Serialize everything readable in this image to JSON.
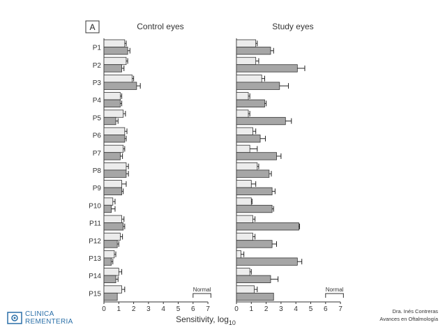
{
  "chart_data": {
    "type": "bar",
    "panel_label": "A",
    "xlabel": "Sensitivity, log",
    "xlabel_sub": "10",
    "xlim": [
      0,
      7
    ],
    "xticks": [
      "0",
      "1",
      "2",
      "3",
      "4",
      "5",
      "6",
      "7"
    ],
    "normal_label": "Normal",
    "normal_range": [
      6,
      7.2
    ],
    "categories": [
      "P1",
      "P2",
      "P3",
      "P4",
      "P5",
      "P6",
      "P7",
      "P8",
      "P9",
      "P10",
      "P11",
      "P12",
      "P13",
      "P14",
      "P15"
    ],
    "panels": [
      {
        "title": "Control eyes",
        "series": [
          {
            "values": [
              1.4,
              1.5,
              1.9,
              1.1,
              1.3,
              1.4,
              1.3,
              1.5,
              1.2,
              0.6,
              1.2,
              1.1,
              0.7,
              1.0,
              1.2
            ],
            "errors": [
              0.1,
              0.1,
              0.1,
              0.1,
              0.15,
              0.15,
              0.1,
              0.15,
              0.3,
              0.15,
              0.15,
              0.15,
              0.1,
              0.2,
              0.2
            ]
          },
          {
            "values": [
              1.6,
              1.2,
              2.2,
              1.1,
              0.8,
              1.4,
              1.1,
              1.5,
              1.2,
              0.5,
              1.3,
              0.9,
              0.5,
              0.8,
              0.9
            ],
            "errors": [
              0.15,
              0.15,
              0.25,
              0.1,
              0.15,
              0.1,
              0.15,
              0.15,
              0.1,
              0.25,
              0.1,
              0.1,
              0.1,
              0.15,
              0.0
            ]
          }
        ]
      },
      {
        "title": "Study eyes",
        "series": [
          {
            "values": [
              1.3,
              1.3,
              1.7,
              0.8,
              0.8,
              1.1,
              0.9,
              1.4,
              1.0,
              1.0,
              1.1,
              1.1,
              0.3,
              0.9,
              1.2
            ],
            "errors": [
              0.1,
              0.2,
              0.2,
              0.1,
              0.1,
              0.2,
              0.5,
              0.1,
              0.3,
              0.05,
              0.15,
              0.15,
              0.2,
              0.1,
              0.2
            ]
          },
          {
            "values": [
              2.3,
              4.1,
              2.9,
              1.9,
              3.3,
              1.6,
              2.7,
              2.2,
              2.4,
              2.4,
              4.2,
              2.4,
              4.1,
              2.3,
              2.5
            ],
            "errors": [
              0.2,
              0.5,
              0.6,
              0.1,
              0.4,
              0.35,
              0.3,
              0.15,
              0.2,
              0.1,
              0.05,
              0.3,
              0.3,
              0.5,
              0.0
            ]
          }
        ]
      }
    ]
  },
  "footer": {
    "logo_line1": "CLINICA",
    "logo_line2": "REMENTERIA",
    "author": "Dra. Inés Contreras",
    "subtitle": "Avances en Oftalmología"
  }
}
